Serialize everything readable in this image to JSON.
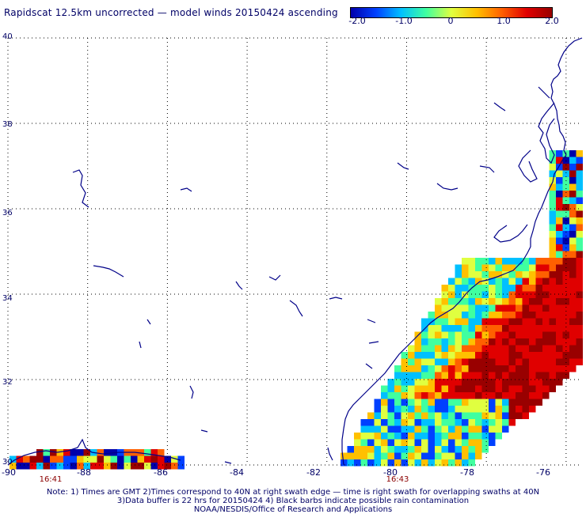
{
  "title": "Rapidscat 12.5km uncorrected — model winds 20150424 ascending",
  "colorbar": {
    "labels": [
      "-2.0",
      "-1.0",
      "0",
      "1.0",
      "2.0"
    ],
    "colors": [
      "#0000aa",
      "#0040ff",
      "#00c0ff",
      "#40ffa0",
      "#e0ff40",
      "#ffc000",
      "#ff6000",
      "#e00000",
      "#990000"
    ]
  },
  "axes": {
    "lat_labels": [
      "40",
      "38",
      "36",
      "34",
      "32",
      "30"
    ],
    "lon_labels": [
      "-90",
      "-88",
      "-86",
      "-84",
      "-82",
      "-80",
      "-78",
      "-76"
    ]
  },
  "times": {
    "left": "16:41",
    "right": "16:43"
  },
  "notes": {
    "line1": "Note: 1) Times are GMT 2)Times correspond to 40N at right swath edge — time is right swath for overlapping swaths at 40N",
    "line2": "3)Data buffer is 22 hrs for 20150424 4) Black barbs indicate possible rain contamination",
    "line3": "NOAA/NESDIS/Office of Research and Applications"
  },
  "map": {
    "lat_range": [
      30,
      40
    ],
    "lon_range": [
      -90,
      -75.6
    ],
    "coast_color": "#000088",
    "grid_color": "#000000"
  }
}
